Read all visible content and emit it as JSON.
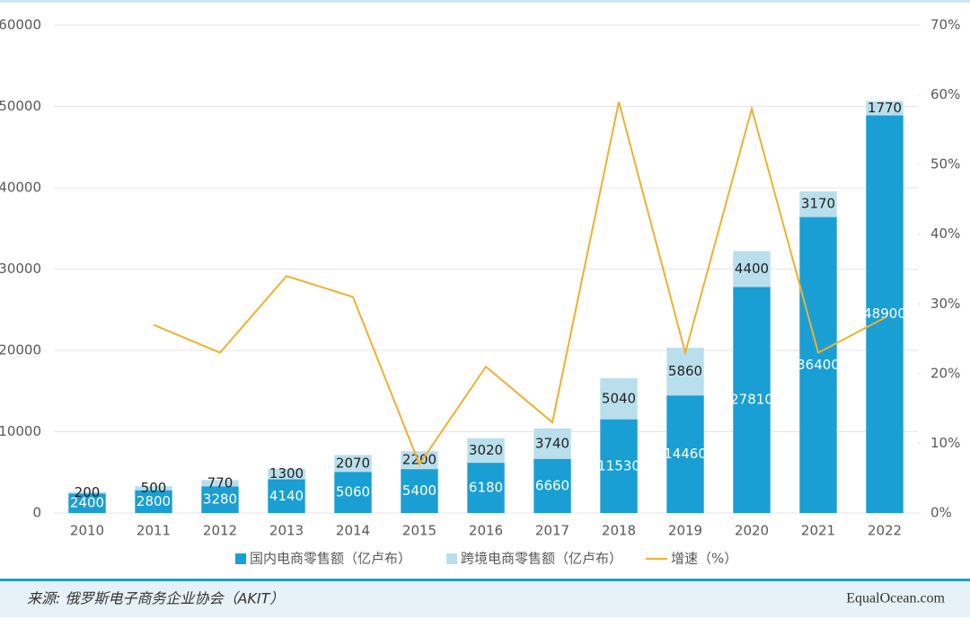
{
  "chart_data": {
    "type": "bar-line",
    "categories": [
      "2010",
      "2011",
      "2012",
      "2013",
      "2014",
      "2015",
      "2016",
      "2017",
      "2018",
      "2019",
      "2020",
      "2021",
      "2022"
    ],
    "series": [
      {
        "name": "国内电商零售额（亿卢布）",
        "color": "#1a9fd4",
        "type": "bar",
        "values": [
          2400,
          2800,
          3280,
          4140,
          5060,
          5400,
          6180,
          6660,
          11530,
          14460,
          27810,
          36400,
          48900
        ]
      },
      {
        "name": "跨境电商零售额（亿卢布）",
        "color": "#b9dfec",
        "type": "bar",
        "values": [
          200,
          500,
          770,
          1300,
          2070,
          2200,
          3020,
          3740,
          5040,
          5860,
          4400,
          3170,
          1770
        ]
      },
      {
        "name": "增速（%）",
        "color": "#f0b030",
        "type": "line",
        "axis": "y2",
        "values": [
          null,
          27,
          23,
          34,
          31,
          7,
          21,
          13,
          59,
          23,
          58,
          23,
          28
        ]
      }
    ],
    "ylim": [
      0,
      60000
    ],
    "yticks": [
      0,
      10000,
      20000,
      30000,
      40000,
      50000,
      60000
    ],
    "y2lim": [
      0,
      70
    ],
    "y2ticks": [
      {
        "value": 0,
        "label": "0%"
      },
      {
        "value": 10,
        "label": "10%"
      },
      {
        "value": 20,
        "label": "20%"
      },
      {
        "value": 30,
        "label": "30%"
      },
      {
        "value": 40,
        "label": "40%"
      },
      {
        "value": 50,
        "label": "50%"
      },
      {
        "value": 60,
        "label": "60%"
      },
      {
        "value": 70,
        "label": "70%"
      }
    ],
    "grid": true,
    "legend": "bottom"
  },
  "footer": {
    "source": "来源: 俄罗斯电子商务企业协会（AKIT）",
    "brand": "EqualOcean.com"
  }
}
